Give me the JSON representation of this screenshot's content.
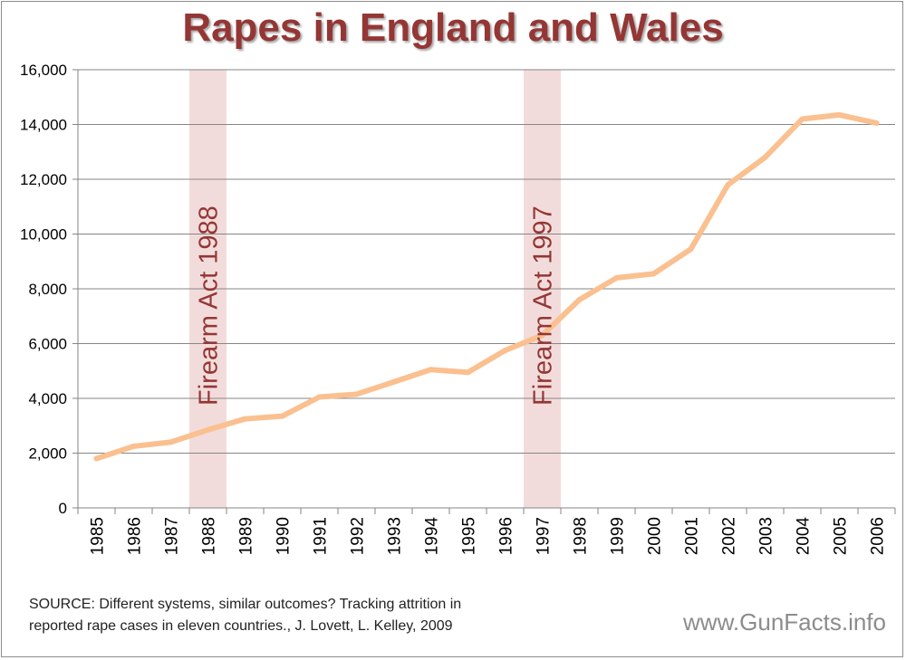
{
  "chart_data": {
    "type": "line",
    "title": "Rapes in England and Wales",
    "xlabel": "",
    "ylabel": "",
    "categories": [
      "1985",
      "1986",
      "1987",
      "1988",
      "1989",
      "1990",
      "1991",
      "1992",
      "1993",
      "1994",
      "1995",
      "1996",
      "1997",
      "1998",
      "1999",
      "2000",
      "2001",
      "2002",
      "2003",
      "2004",
      "2005",
      "2006"
    ],
    "series": [
      {
        "name": "Rapes",
        "values": [
          1800,
          2250,
          2400,
          2850,
          3250,
          3350,
          4050,
          4150,
          4600,
          5050,
          4950,
          5750,
          6300,
          7600,
          8400,
          8550,
          9450,
          11800,
          12800,
          14200,
          14350,
          14050
        ]
      }
    ],
    "ylim": [
      0,
      16000
    ],
    "yticks": [
      0,
      2000,
      4000,
      6000,
      8000,
      10000,
      12000,
      14000,
      16000
    ],
    "ytick_labels": [
      "0",
      "2,000",
      "4,000",
      "6,000",
      "8,000",
      "10,000",
      "12,000",
      "14,000",
      "16,000"
    ],
    "grid": true,
    "annotations": [
      {
        "label": "Firearm Act 1988",
        "category": "1988"
      },
      {
        "label": "Firearm Act 1997",
        "category": "1997"
      }
    ],
    "colors": {
      "line": "#fac090",
      "band": "#f2dcdb",
      "annotation_text": "#943634",
      "grid": "#868686",
      "title": "#943634"
    }
  },
  "source_text": {
    "line1": "SOURCE: Different systems, similar outcomes? Tracking attrition in",
    "line2": "reported rape cases in eleven countries., J. Lovett, L. Kelley, 2009"
  },
  "brand": "www.GunFacts.info"
}
